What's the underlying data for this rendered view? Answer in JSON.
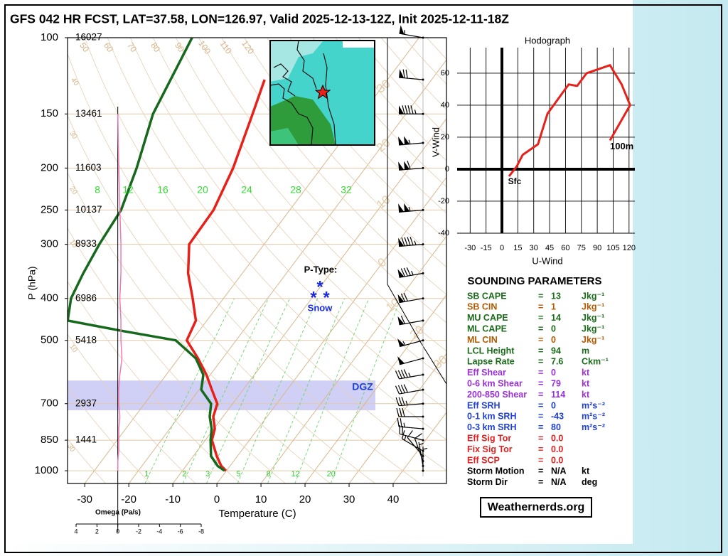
{
  "chart_data": [
    {
      "type": "skewt",
      "title": "GFS 042 HR FCST, LAT=37.58, LON=126.97, Valid 2025-12-13-12Z, Init 2025-12-11-18Z",
      "xlabel": "Temperature (C)",
      "ylabel": "P (hPa)",
      "xlim": [
        -33.9,
        52.1
      ],
      "ylim": [
        1070,
        100
      ],
      "xticks": [
        -30,
        -20,
        -10,
        0,
        10,
        20,
        30,
        40
      ],
      "yticks": [
        100,
        150,
        200,
        250,
        300,
        400,
        500,
        700,
        850,
        1000
      ],
      "log_y": true,
      "heights": {
        "p": [
          100,
          150,
          200,
          250,
          300,
          400,
          500,
          700,
          850
        ],
        "values": [
          16027,
          13461,
          11603,
          10137,
          8933,
          6986,
          5418,
          2937,
          1441
        ]
      },
      "series": [
        {
          "color": "#e8201a",
          "p": [
            1000,
            975,
            925,
            850,
            800,
            750,
            700,
            650,
            600,
            550,
            500,
            450,
            400,
            350,
            300,
            250,
            200,
            150,
            125
          ],
          "values": [
            -0.1,
            -2.0,
            -4.7,
            -8.5,
            -9.8,
            -12.2,
            -13.5,
            -17.1,
            -20.9,
            -25.6,
            -31.2,
            -32.5,
            -37.0,
            -42.3,
            -47.0,
            -47.3,
            -50.0,
            -54.8,
            -57.9
          ]
        },
        {
          "color": "#16691c",
          "p": [
            1000,
            975,
            925,
            850,
            800,
            750,
            700,
            650,
            600,
            550,
            500,
            475,
            450,
            400,
            350,
            300,
            250,
            200,
            150,
            100
          ],
          "values": [
            -0.4,
            -2.8,
            -6.0,
            -8.8,
            -10.5,
            -13.0,
            -14.9,
            -19.5,
            -21.6,
            -26.1,
            -33.7,
            -47.7,
            -61.6,
            -64.6,
            -66.1,
            -67.4,
            -68.3,
            -71.9,
            -77.4,
            -81.5
          ]
        }
      ],
      "mixing_ratio_labels": [
        1,
        2,
        3,
        5,
        8,
        12,
        20
      ],
      "upper_labels": [
        8,
        12,
        16,
        20,
        24,
        28,
        32
      ],
      "adiabat_labels_top": [
        50,
        60,
        70,
        80,
        90,
        100,
        110,
        120
      ],
      "adiabat_labels_left": [
        40,
        30,
        20,
        10,
        10,
        30
      ],
      "adiabat_labels_right": [
        30,
        20,
        10,
        0,
        10,
        20,
        30
      ],
      "dgz": {
        "label": "DGZ",
        "p_bottom": 725,
        "p_top": 619
      },
      "ptype": {
        "label": "P-Type:",
        "value": "Snow"
      },
      "omega": {
        "label": "Omega (Pa/s)",
        "xlim": [
          4,
          -8
        ],
        "xticks": [
          4,
          2,
          0,
          -2,
          -4,
          -6,
          -8
        ],
        "color": "#f07ab8",
        "p": [
          150,
          200,
          250,
          300,
          350,
          400,
          450,
          500,
          550,
          600,
          650,
          700,
          750,
          800,
          850,
          900,
          950,
          1000
        ],
        "values": [
          0.0,
          -0.1,
          -0.2,
          -0.3,
          -0.3,
          -0.2,
          -0.3,
          -0.3,
          -0.4,
          -0.2,
          -0.1,
          -0.1,
          -0.2,
          -0.1,
          -0.1,
          -0.1,
          0.0,
          0.0
        ]
      },
      "winds": {
        "p": [
          100,
          125,
          150,
          175,
          200,
          250,
          300,
          350,
          400,
          450,
          500,
          550,
          600,
          650,
          700,
          750,
          800,
          850,
          900,
          925,
          950,
          975,
          1000
        ],
        "speed": [
          55,
          70,
          95,
          105,
          110,
          105,
          95,
          85,
          70,
          60,
          55,
          50,
          45,
          40,
          35,
          30,
          25,
          20,
          15,
          10,
          8,
          5,
          5
        ],
        "direction": [
          280,
          275,
          270,
          265,
          265,
          265,
          265,
          260,
          260,
          260,
          255,
          255,
          260,
          260,
          265,
          270,
          275,
          285,
          300,
          320,
          340,
          350,
          0
        ]
      }
    },
    {
      "type": "hodograph",
      "title": "Hodograph",
      "xlabel": "U-Wind",
      "ylabel": "V-Wind",
      "xlim": [
        -42.3,
        125.5
      ],
      "ylim": [
        -40,
        80.4
      ],
      "xticks": [
        -30,
        -15,
        0,
        15,
        30,
        45,
        60,
        75,
        90,
        105,
        120
      ],
      "yticks": [
        -40,
        -20,
        0,
        20,
        40,
        60
      ],
      "series": [
        {
          "color": "#e8201a",
          "x": [
            6.7,
            14,
            19.5,
            34,
            43,
            63,
            71,
            80,
            102,
            113,
            121,
            102
          ],
          "values": [
            -4.4,
            1.8,
            8.9,
            15.6,
            34.7,
            53,
            52,
            60,
            65,
            53,
            40,
            18
          ]
        }
      ],
      "start_label": "Sfc",
      "end_label": "100m"
    }
  ],
  "parameters": {
    "title": "SOUNDING PARAMETERS",
    "separator": "=",
    "rows": [
      {
        "label": "SB CAPE",
        "value": "13",
        "unit": "Jkg⁻¹",
        "color": "#1a6b1a"
      },
      {
        "label": "SB CIN",
        "value": "1",
        "unit": "Jkg⁻¹",
        "color": "#b35a00"
      },
      {
        "label": "MU CAPE",
        "value": "14",
        "unit": "Jkg⁻¹",
        "color": "#1a6b1a"
      },
      {
        "label": "ML CAPE",
        "value": "0",
        "unit": "Jkg⁻¹",
        "color": "#1a6b1a"
      },
      {
        "label": "ML CIN",
        "value": "0",
        "unit": "Jkg⁻¹",
        "color": "#b35a00"
      },
      {
        "label": "LCL Height",
        "value": "94",
        "unit": "m",
        "color": "#1a6b1a"
      },
      {
        "label": "Lapse Rate",
        "value": "7.6",
        "unit": "Ckm⁻¹",
        "color": "#1a6b1a"
      },
      {
        "label": "Eff Shear",
        "value": "0",
        "unit": "kt",
        "color": "#9b30d9"
      },
      {
        "label": "0-6 km Shear",
        "value": "79",
        "unit": "kt",
        "color": "#9b30d9"
      },
      {
        "label": "200-850 Shear",
        "value": "114",
        "unit": "kt",
        "color": "#9b30d9"
      },
      {
        "label": "Eff SRH",
        "value": "0",
        "unit": "m²s⁻²",
        "color": "#1f3fd6"
      },
      {
        "label": "0-1 km SRH",
        "value": "-43",
        "unit": "m²s⁻²",
        "color": "#1f3fd6"
      },
      {
        "label": "0-3 km SRH",
        "value": "80",
        "unit": "m²s⁻²",
        "color": "#1f3fd6"
      },
      {
        "label": "Eff Sig Tor",
        "value": "0.0",
        "unit": "",
        "color": "#e02020"
      },
      {
        "label": "Fix Sig Tor",
        "value": "0.0",
        "unit": "",
        "color": "#e02020"
      },
      {
        "label": "Eff SCP",
        "value": "0.0",
        "unit": "",
        "color": "#e02020"
      },
      {
        "label": "Storm Motion",
        "value": "N/A",
        "unit": "kt",
        "color": "#000000"
      },
      {
        "label": "Storm Dir",
        "value": "N/A",
        "unit": "deg",
        "color": "#000000"
      }
    ]
  },
  "credit": "Weathernerds.org"
}
